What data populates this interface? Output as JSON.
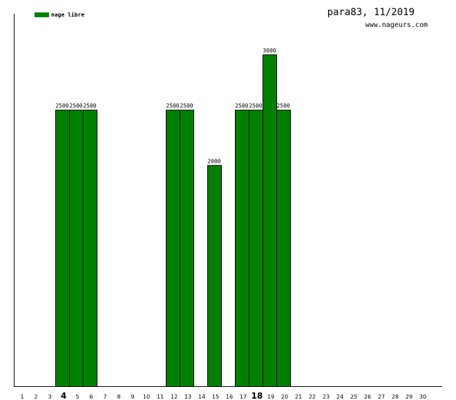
{
  "chart_data": {
    "type": "bar",
    "title": "para83, 11/2019",
    "subtitle": "www.nageurs.com",
    "legend": {
      "placement": "top-left",
      "entries": [
        {
          "name": "nage libre",
          "color": "#008000"
        }
      ]
    },
    "categories": [
      "1",
      "2",
      "3",
      "4",
      "5",
      "6",
      "7",
      "8",
      "9",
      "10",
      "11",
      "12",
      "13",
      "14",
      "15",
      "16",
      "17",
      "18",
      "19",
      "20",
      "21",
      "22",
      "23",
      "24",
      "25",
      "26",
      "27",
      "28",
      "29",
      "30"
    ],
    "bold_categories": [
      "4",
      "18"
    ],
    "series": [
      {
        "name": "nage libre",
        "color": "#008000",
        "values": [
          0,
          0,
          0,
          2500,
          2500,
          2500,
          0,
          0,
          0,
          0,
          0,
          2500,
          2500,
          0,
          2000,
          0,
          2500,
          2500,
          3000,
          2500,
          0,
          0,
          0,
          0,
          0,
          0,
          0,
          0,
          0,
          0
        ]
      }
    ],
    "ylim": [
      0,
      3000
    ],
    "grid": false
  }
}
